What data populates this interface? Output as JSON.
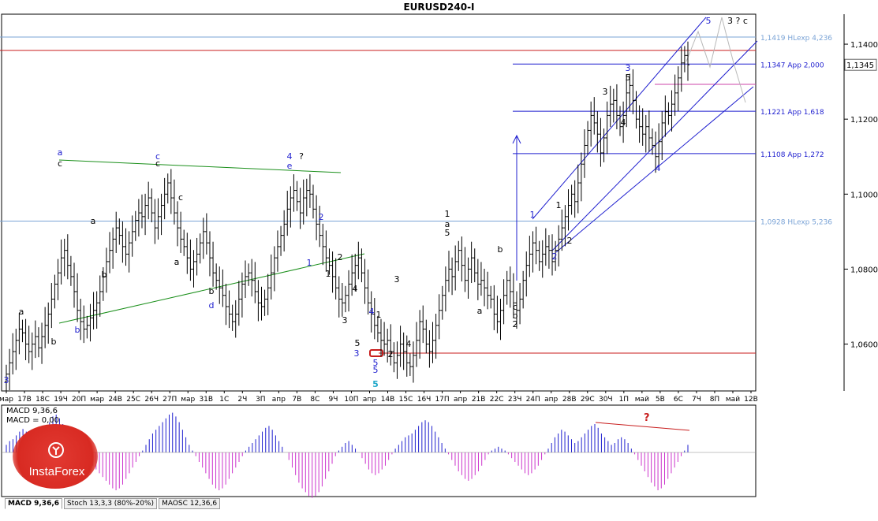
{
  "window": {
    "title": "EURUSD240-I"
  },
  "indicator_tabs": [
    {
      "label": "MACD 9,36,6",
      "active": true
    },
    {
      "label": "Stoch 13,3,3 (80%-20%)",
      "active": false
    },
    {
      "label": "MAOSC 12,36,6",
      "active": false
    }
  ],
  "macd_panel": {
    "line1": "MACD 9,36,6",
    "line2": "MACD = 0,00",
    "question_mark": "?"
  },
  "watermark": {
    "brand": "InstaForex"
  },
  "colors": {
    "candle": "#000000",
    "green_line": "#1a8f1a",
    "blue_line": "#1f1fcf",
    "red_line": "#c81e1e",
    "light_blue_line": "#7aa3d6",
    "macd_pos": "#1f1fcf",
    "macd_neg": "#cc33cc",
    "projection": "#b9b9b9",
    "brand_red": "#d82a22"
  },
  "chart_data": {
    "type": "candlestick",
    "symbol": "EURUSD240-I",
    "y_axis": {
      "ticks": [
        "1,1400",
        "1,1200",
        "1,1000",
        "1,0800",
        "1,0600"
      ],
      "tick_values": [
        1.14,
        1.12,
        1.1,
        1.08,
        1.06
      ],
      "ylim": [
        1.0475,
        1.148
      ]
    },
    "x_axis": {
      "tick_labels": [
        "мар",
        "17В",
        "18С",
        "19Ч",
        "20П",
        "мар",
        "24В",
        "25С",
        "26Ч",
        "27П",
        "мар",
        "31В",
        "1С",
        "2Ч",
        "3П",
        "апр",
        "7В",
        "8С",
        "9Ч",
        "10П",
        "апр",
        "14В",
        "15С",
        "16Ч",
        "17П",
        "апр",
        "21В",
        "22С",
        "23Ч",
        "24П",
        "апр",
        "28В",
        "29С",
        "30Ч",
        "1П",
        "май",
        "5В",
        "6С",
        "7Ч",
        "8П",
        "май",
        "12В"
      ]
    },
    "price_levels": [
      {
        "value": 1.1419,
        "label": "1,1419 HLexp 4,236",
        "color": "#7aa3d6"
      },
      {
        "value": 1.1347,
        "label": "1,1347 App 2,000",
        "color": "#1f1fcf"
      },
      {
        "value": 1.1221,
        "label": "1,1221 App 1,618",
        "color": "#1f1fcf"
      },
      {
        "value": 1.1108,
        "label": "1,1108 App 1,272",
        "color": "#1f1fcf"
      },
      {
        "value": 1.0928,
        "label": "1,0928 HLexp 5,236",
        "color": "#7aa3d6"
      }
    ],
    "current_price": "1,1345",
    "candles_close": [
      1.052,
      1.055,
      1.058,
      1.061,
      1.064,
      1.063,
      1.06,
      1.058,
      1.06,
      1.062,
      1.059,
      1.062,
      1.065,
      1.068,
      1.072,
      1.076,
      1.079,
      1.083,
      1.085,
      1.081,
      1.078,
      1.074,
      1.069,
      1.066,
      1.064,
      1.065,
      1.067,
      1.069,
      1.071,
      1.074,
      1.078,
      1.082,
      1.085,
      1.088,
      1.091,
      1.089,
      1.086,
      1.084,
      1.087,
      1.09,
      1.093,
      1.095,
      1.094,
      1.097,
      1.099,
      1.095,
      1.091,
      1.094,
      1.097,
      1.1,
      1.103,
      1.099,
      1.095,
      1.091,
      1.088,
      1.086,
      1.083,
      1.08,
      1.082,
      1.084,
      1.087,
      1.09,
      1.087,
      1.083,
      1.079,
      1.077,
      1.075,
      1.073,
      1.07,
      1.068,
      1.066,
      1.068,
      1.072,
      1.076,
      1.078,
      1.079,
      1.077,
      1.074,
      1.071,
      1.07,
      1.072,
      1.075,
      1.079,
      1.083,
      1.086,
      1.089,
      1.092,
      1.096,
      1.099,
      1.101,
      1.098,
      1.095,
      1.099,
      1.101,
      1.1,
      1.096,
      1.092,
      1.089,
      1.086,
      1.083,
      1.081,
      1.078,
      1.075,
      1.072,
      1.071,
      1.073,
      1.076,
      1.079,
      1.081,
      1.083,
      1.079,
      1.075,
      1.071,
      1.068,
      1.065,
      1.063,
      1.061,
      1.06,
      1.061,
      1.058,
      1.055,
      1.057,
      1.06,
      1.058,
      1.055,
      1.054,
      1.057,
      1.061,
      1.066,
      1.064,
      1.06,
      1.058,
      1.061,
      1.065,
      1.069,
      1.073,
      1.077,
      1.08,
      1.078,
      1.082,
      1.085,
      1.081,
      1.077,
      1.08,
      1.083,
      1.079,
      1.076,
      1.077,
      1.075,
      1.073,
      1.072,
      1.068,
      1.066,
      1.069,
      1.073,
      1.077,
      1.074,
      1.071,
      1.069,
      1.072,
      1.077,
      1.081,
      1.084,
      1.087,
      1.085,
      1.082,
      1.084,
      1.086,
      1.085,
      1.082,
      1.085,
      1.088,
      1.091,
      1.094,
      1.097,
      1.1,
      1.098,
      1.103,
      1.108,
      1.113,
      1.117,
      1.121,
      1.119,
      1.116,
      1.111,
      1.115,
      1.121,
      1.124,
      1.125,
      1.121,
      1.118,
      1.121,
      1.127,
      1.129,
      1.125,
      1.12,
      1.118,
      1.116,
      1.118,
      1.115,
      1.113,
      1.11,
      1.114,
      1.119,
      1.122,
      1.121,
      1.124,
      1.127,
      1.131,
      1.135,
      1.137,
      1.1345
    ],
    "wave_labels": [
      {
        "text": "a",
        "color": "#1f1fcf"
      },
      {
        "text": "c",
        "color": "#000"
      },
      {
        "text": "c",
        "color": "#1f1fcf"
      },
      {
        "text": "c",
        "color": "#000"
      },
      {
        "text": "4",
        "color": "#1f1fcf"
      },
      {
        "text": "e",
        "color": "#1f1fcf"
      },
      {
        "text": "?",
        "color": "#000"
      },
      {
        "text": "b",
        "color": "#000"
      },
      {
        "text": "a",
        "color": "#000"
      },
      {
        "text": "b",
        "color": "#000"
      },
      {
        "text": "a",
        "color": "#000"
      },
      {
        "text": "c",
        "color": "#000"
      },
      {
        "text": "d",
        "color": "#1f1fcf"
      },
      {
        "text": "b",
        "color": "#1f1fcf"
      },
      {
        "text": "b",
        "color": "#000"
      },
      {
        "text": "a",
        "color": "#000"
      },
      {
        "text": "2",
        "color": "#1f1fcf"
      },
      {
        "text": "1",
        "color": "#1f1fcf"
      },
      {
        "text": "1",
        "color": "#000"
      },
      {
        "text": "2",
        "color": "#000"
      },
      {
        "text": "4",
        "color": "#000"
      },
      {
        "text": "3",
        "color": "#000"
      },
      {
        "text": "4",
        "color": "#1f1fcf"
      },
      {
        "text": "5",
        "color": "#000"
      },
      {
        "text": "3",
        "color": "#1f1fcf"
      },
      {
        "text": "1",
        "color": "#000"
      },
      {
        "text": "5",
        "color": "#1f1fcf"
      },
      {
        "text": "5",
        "color": "#1f1fcf"
      },
      {
        "text": "5",
        "color": "#1fa7c9"
      },
      {
        "text": "2",
        "color": "#000"
      },
      {
        "text": "3",
        "color": "#000"
      },
      {
        "text": "4",
        "color": "#000"
      },
      {
        "text": "1",
        "color": "#000"
      },
      {
        "text": "a",
        "color": "#000"
      },
      {
        "text": "5",
        "color": "#000"
      },
      {
        "text": "b",
        "color": "#000"
      },
      {
        "text": "a",
        "color": "#000"
      },
      {
        "text": "c",
        "color": "#000"
      },
      {
        "text": "b",
        "color": "#000"
      },
      {
        "text": "2",
        "color": "#000"
      },
      {
        "text": "1",
        "color": "#1f1fcf"
      },
      {
        "text": "2",
        "color": "#1f1fcf"
      },
      {
        "text": "1",
        "color": "#000"
      },
      {
        "text": "2",
        "color": "#000"
      },
      {
        "text": "3",
        "color": "#000"
      },
      {
        "text": "3",
        "color": "#1f1fcf"
      },
      {
        "text": "5",
        "color": "#000"
      },
      {
        "text": "4",
        "color": "#000"
      },
      {
        "text": "4",
        "color": "#1f1fcf"
      },
      {
        "text": "5",
        "color": "#1f1fcf"
      },
      {
        "text": "3 ? c",
        "color": "#000"
      },
      {
        "text": "3",
        "color": "#1f1fcf"
      }
    ],
    "macd_values": [
      0.2,
      0.3,
      0.35,
      0.45,
      0.55,
      0.62,
      0.55,
      0.45,
      0.35,
      0.3,
      0.4,
      0.5,
      0.65,
      0.8,
      0.95,
      1.0,
      0.9,
      0.75,
      0.6,
      0.45,
      0.3,
      0.15,
      0.05,
      -0.05,
      -0.15,
      -0.25,
      -0.35,
      -0.45,
      -0.55,
      -0.65,
      -0.75,
      -0.85,
      -0.95,
      -1.0,
      -0.95,
      -0.85,
      -0.7,
      -0.55,
      -0.4,
      -0.25,
      -0.1,
      0.05,
      0.2,
      0.35,
      0.5,
      0.6,
      0.7,
      0.8,
      0.9,
      1.0,
      1.05,
      0.95,
      0.8,
      0.6,
      0.4,
      0.2,
      0.05,
      -0.1,
      -0.25,
      -0.4,
      -0.55,
      -0.7,
      -0.85,
      -0.95,
      -1.0,
      -0.95,
      -0.85,
      -0.7,
      -0.55,
      -0.4,
      -0.25,
      -0.1,
      0.05,
      0.15,
      0.25,
      0.35,
      0.45,
      0.55,
      0.65,
      0.7,
      0.6,
      0.45,
      0.3,
      0.15,
      0.0,
      -0.2,
      -0.4,
      -0.6,
      -0.8,
      -0.95,
      -1.05,
      -1.15,
      -1.2,
      -1.15,
      -1.05,
      -0.9,
      -0.7,
      -0.5,
      -0.3,
      -0.1,
      0.05,
      0.15,
      0.25,
      0.3,
      0.2,
      0.1,
      0.0,
      -0.15,
      -0.3,
      -0.45,
      -0.55,
      -0.6,
      -0.55,
      -0.45,
      -0.35,
      -0.2,
      -0.05,
      0.1,
      0.2,
      0.3,
      0.4,
      0.45,
      0.5,
      0.6,
      0.7,
      0.8,
      0.85,
      0.8,
      0.7,
      0.55,
      0.4,
      0.25,
      0.1,
      -0.05,
      -0.2,
      -0.35,
      -0.5,
      -0.6,
      -0.7,
      -0.75,
      -0.7,
      -0.6,
      -0.5,
      -0.35,
      -0.2,
      -0.05,
      0.05,
      0.1,
      0.15,
      0.1,
      0.05,
      -0.05,
      -0.15,
      -0.25,
      -0.35,
      -0.45,
      -0.55,
      -0.6,
      -0.55,
      -0.45,
      -0.35,
      -0.2,
      -0.05,
      0.1,
      0.25,
      0.4,
      0.5,
      0.6,
      0.55,
      0.45,
      0.35,
      0.25,
      0.3,
      0.4,
      0.5,
      0.6,
      0.7,
      0.75,
      0.65,
      0.5,
      0.4,
      0.3,
      0.2,
      0.25,
      0.35,
      0.4,
      0.35,
      0.25,
      0.1,
      -0.05,
      -0.2,
      -0.35,
      -0.5,
      -0.65,
      -0.8,
      -0.9,
      -1.0,
      -0.95,
      -0.85,
      -0.7,
      -0.55,
      -0.4,
      -0.25,
      -0.1,
      0.05,
      0.2
    ]
  }
}
